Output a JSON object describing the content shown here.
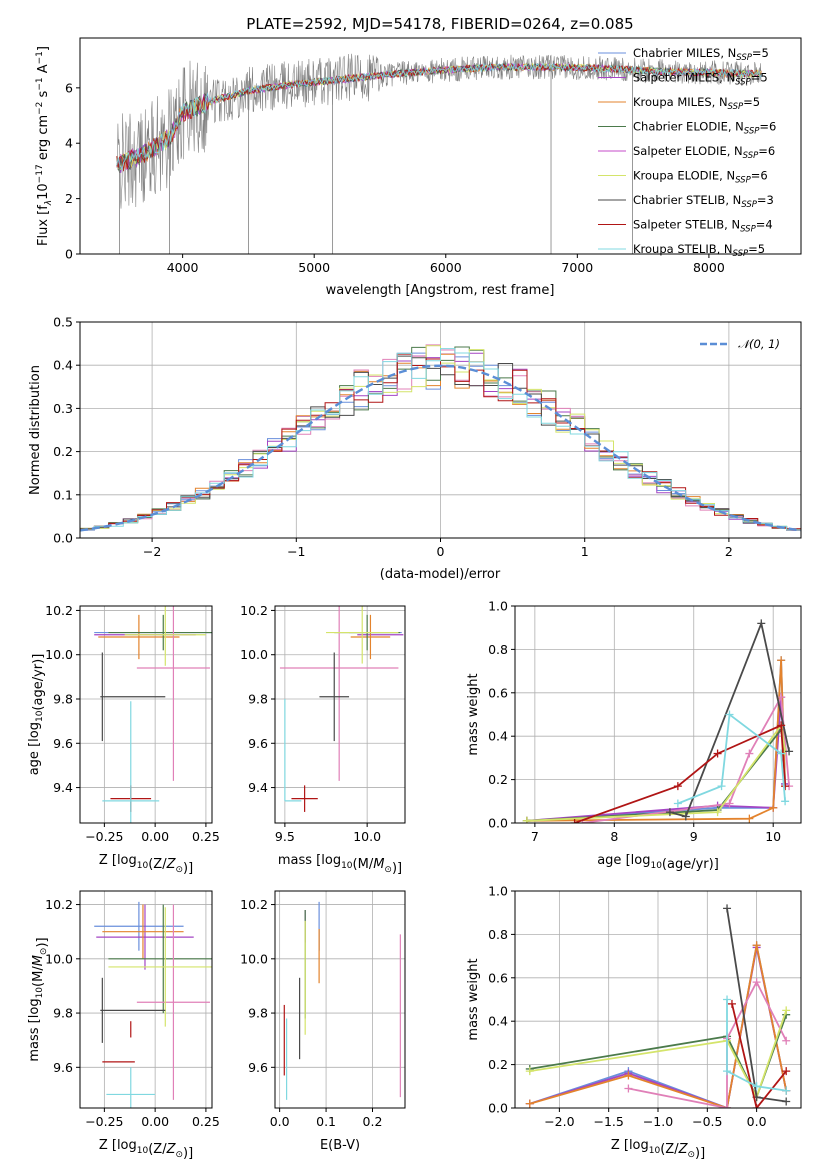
{
  "title": "PLATE=2592, MJD=54178, FIBERID=0264, z=0.085",
  "colors": {
    "Chabrier MILES": "#6a8fdc",
    "Salpeter MILES": "#a445c4",
    "Kroupa MILES": "#e3832d",
    "Chabrier ELODIE": "#4b7a4b",
    "Salpeter ELODIE": "#c54bc9",
    "Kroupa ELODIE": "#d4e46a",
    "Chabrier STELIB": "#4a4a4a",
    "Salpeter STELIB": "#b01515",
    "Kroupa STELIB": "#80d8e0",
    "N01": "#5b8ed6",
    "spectrum_gray": "#808080",
    "pink": "#e080b8"
  },
  "chart_data": [
    {
      "id": "spectrum",
      "type": "line",
      "title": "PLATE=2592, MJD=54178, FIBERID=0264, z=0.085",
      "xlabel": "wavelength [Angstrom, rest frame]",
      "ylabel_parts": [
        "Flux [f",
        "λ",
        "10",
        "−17",
        " erg cm",
        "−2",
        " s",
        "−1",
        " A",
        "−1",
        "]"
      ],
      "xlim": [
        3220,
        8700
      ],
      "ylim": [
        0,
        7.8
      ],
      "xticks": [
        4000,
        5000,
        6000,
        7000,
        8000
      ],
      "xtick_labels": [
        "4000",
        "5000",
        "6000",
        "7000",
        "8000"
      ],
      "yticks": [
        0,
        2,
        4,
        6
      ],
      "ytick_labels": [
        "0",
        "2",
        "4",
        "6"
      ],
      "legend": [
        {
          "name": "Chabrier MILES",
          "nssp": "5"
        },
        {
          "name": "Salpeter MILES",
          "nssp": "5"
        },
        {
          "name": "Kroupa MILES",
          "nssp": "5"
        },
        {
          "name": "Chabrier ELODIE",
          "nssp": "6"
        },
        {
          "name": "Salpeter ELODIE",
          "nssp": "6"
        },
        {
          "name": "Kroupa ELODIE",
          "nssp": "6"
        },
        {
          "name": "Chabrier STELIB",
          "nssp": "3"
        },
        {
          "name": "Salpeter STELIB",
          "nssp": "4"
        },
        {
          "name": "Kroupa STELIB",
          "nssp": "5"
        }
      ],
      "continuum": {
        "x": [
          3500,
          3700,
          3900,
          4000,
          4200,
          4500,
          4800,
          5000,
          5300,
          5600,
          6000,
          6400,
          6800,
          7200,
          7600,
          8000,
          8400
        ],
        "y": [
          3.2,
          3.6,
          4.2,
          5.1,
          5.5,
          5.9,
          6.1,
          6.2,
          6.35,
          6.5,
          6.65,
          6.75,
          6.75,
          6.7,
          6.6,
          6.55,
          6.5
        ]
      },
      "dips": [
        {
          "x": 3520,
          "y": 0
        },
        {
          "x": 3900,
          "y": 0
        },
        {
          "x": 4500,
          "y": 0
        },
        {
          "x": 5140,
          "y": 0
        },
        {
          "x": 6800,
          "y": 0
        },
        {
          "x": 7420,
          "y": 0
        }
      ],
      "legend_label": "N",
      "legend_sub": "SSP"
    },
    {
      "id": "residuals",
      "type": "histogram",
      "xlabel": "(data-model)/error",
      "ylabel": "Normed distribution",
      "xlim": [
        -2.5,
        2.5
      ],
      "ylim": [
        0,
        0.5
      ],
      "xticks": [
        -2,
        -1,
        0,
        1,
        2
      ],
      "xtick_labels": [
        "−2",
        "−1",
        "0",
        "1",
        "2"
      ],
      "yticks": [
        0,
        0.1,
        0.2,
        0.3,
        0.4,
        0.5
      ],
      "ytick_labels": [
        "0.0",
        "0.1",
        "0.2",
        "0.3",
        "0.4",
        "0.5"
      ],
      "legend_label": "𝒩(0, 1)",
      "bin_width": 0.1
    },
    {
      "id": "age-vs-Z",
      "type": "errorbar",
      "xlabel": "Z [log10(Z/Z⊙)]",
      "ylabel": "age [log10(age/yr)]",
      "xlim": [
        -0.37,
        0.28
      ],
      "ylim": [
        9.24,
        10.22
      ],
      "xticks": [
        -0.25,
        0,
        0.25
      ],
      "xtick_labels": [
        "−0.25",
        "0.00",
        "0.25"
      ],
      "yticks": [
        9.4,
        9.6,
        9.8,
        10.0,
        10.2
      ],
      "ytick_labels": [
        "9.4",
        "9.6",
        "9.8",
        "10.0",
        "10.2"
      ],
      "points": [
        {
          "model": "Chabrier MILES",
          "x": 0.0,
          "xerr": 0.3,
          "y": 10.1,
          "yerr": 0.0
        },
        {
          "model": "Salpeter MILES",
          "x": -0.05,
          "xerr": 0.25,
          "y": 10.09,
          "yerr": 0.0
        },
        {
          "model": "Kroupa MILES",
          "x": -0.08,
          "xerr": 0.2,
          "y": 10.08,
          "yerr": 0.1
        },
        {
          "model": "Chabrier ELODIE",
          "x": 0.04,
          "xerr": 0.27,
          "y": 10.1,
          "yerr": 0.08
        },
        {
          "model": "Salpeter ELODIE",
          "x": 0.09,
          "xerr": 0.18,
          "y": 9.94,
          "yerr": 0.51
        },
        {
          "model": "Kroupa ELODIE",
          "x": 0.05,
          "xerr": 0.2,
          "y": 10.09,
          "yerr": 0.14
        },
        {
          "model": "Chabrier STELIB",
          "x": -0.26,
          "xerr": 0.0,
          "y": 9.81,
          "yerr": 0.2
        },
        {
          "model": "Chabrier STELIB",
          "x": -0.11,
          "xerr": 0.16,
          "y": 9.81,
          "yerr": 0.0
        },
        {
          "model": "Salpeter STELIB",
          "x": -0.12,
          "xerr": 0.1,
          "y": 9.35,
          "yerr": 0.06
        },
        {
          "model": "Kroupa STELIB",
          "x": -0.12,
          "xerr": 0.14,
          "y": 9.34,
          "yerr": 0.45
        }
      ]
    },
    {
      "id": "age-vs-mass",
      "type": "errorbar",
      "xlabel": "mass [log10(M/M⊙)]",
      "xlim": [
        9.44,
        10.23
      ],
      "ylim": [
        9.24,
        10.22
      ],
      "xticks": [
        9.5,
        10.0
      ],
      "xtick_labels": [
        "9.5",
        "10.0"
      ],
      "yticks": [
        9.4,
        9.6,
        9.8,
        10.0,
        10.2
      ],
      "ytick_labels": [
        "9.4",
        "9.6",
        "9.8",
        "10.0",
        "10.2"
      ],
      "points": [
        {
          "model": "Chabrier MILES",
          "x": 10.05,
          "xerr": 0.16,
          "y": 10.1,
          "yerr": 0.0
        },
        {
          "model": "Salpeter MILES",
          "x": 10.08,
          "xerr": 0.14,
          "y": 10.09,
          "yerr": 0.0
        },
        {
          "model": "Kroupa MILES",
          "x": 10.02,
          "xerr": 0.12,
          "y": 10.08,
          "yerr": 0.1
        },
        {
          "model": "Chabrier ELODIE",
          "x": 10.0,
          "xerr": 0.2,
          "y": 10.1,
          "yerr": 0.08
        },
        {
          "model": "Salpeter ELODIE",
          "x": 9.83,
          "xerr": 0.36,
          "y": 9.94,
          "yerr": 0.51
        },
        {
          "model": "Kroupa ELODIE",
          "x": 9.97,
          "xerr": 0.22,
          "y": 10.1,
          "yerr": 0.14
        },
        {
          "model": "Chabrier STELIB",
          "x": 9.8,
          "xerr": 0.09,
          "y": 9.81,
          "yerr": 0.2
        },
        {
          "model": "Salpeter STELIB",
          "x": 9.62,
          "xerr": 0.08,
          "y": 9.35,
          "yerr": 0.06
        },
        {
          "model": "Kroupa STELIB",
          "x": 9.5,
          "xerr": 0.0,
          "y": 9.57,
          "yerr": 0.23
        },
        {
          "model": "Kroupa STELIB",
          "x": 9.55,
          "xerr": 0.05,
          "y": 9.34,
          "yerr": 0.0
        }
      ]
    },
    {
      "id": "weight-vs-age",
      "type": "line",
      "xlabel": "age [log10(age/yr)]",
      "ylabel": "mass weight",
      "xlim": [
        6.75,
        10.35
      ],
      "ylim": [
        0,
        1
      ],
      "xticks": [
        7,
        8,
        9,
        10
      ],
      "xtick_labels": [
        "7",
        "8",
        "9",
        "10"
      ],
      "yticks": [
        0,
        0.2,
        0.4,
        0.6,
        0.8,
        1.0
      ],
      "ytick_labels": [
        "0.0",
        "0.2",
        "0.4",
        "0.6",
        "0.8",
        "1.0"
      ],
      "series": [
        {
          "model": "Chabrier MILES",
          "x": [
            6.9,
            9.3,
            10.0,
            10.1,
            10.15
          ],
          "y": [
            0.01,
            0.07,
            0.07,
            0.75,
            0.18
          ]
        },
        {
          "model": "Salpeter MILES",
          "x": [
            6.9,
            9.3,
            10.0,
            10.1,
            10.15
          ],
          "y": [
            0.01,
            0.08,
            0.07,
            0.58,
            0.18
          ]
        },
        {
          "model": "Kroupa MILES",
          "x": [
            6.9,
            9.7,
            10.0,
            10.1,
            10.15
          ],
          "y": [
            0.01,
            0.02,
            0.07,
            0.75,
            0.17
          ]
        },
        {
          "model": "Chabrier ELODIE",
          "x": [
            6.9,
            9.3,
            10.1,
            10.15
          ],
          "y": [
            0.01,
            0.06,
            0.43,
            0.33
          ]
        },
        {
          "model": "Salpeter ELODIE",
          "x": [
            7.6,
            9.45,
            9.7,
            10.1,
            10.2
          ],
          "y": [
            0.0,
            0.09,
            0.32,
            0.58,
            0.17
          ]
        },
        {
          "model": "Kroupa ELODIE",
          "x": [
            6.9,
            9.3,
            10.1,
            10.15
          ],
          "y": [
            0.01,
            0.05,
            0.45,
            0.33
          ]
        },
        {
          "model": "Chabrier STELIB",
          "x": [
            8.7,
            8.9,
            9.85,
            10.2
          ],
          "y": [
            0.05,
            0.03,
            0.92,
            0.33
          ]
        },
        {
          "model": "Salpeter STELIB",
          "x": [
            7.5,
            8.8,
            9.3,
            10.1,
            10.15
          ],
          "y": [
            0.0,
            0.17,
            0.32,
            0.45,
            0.17
          ]
        },
        {
          "model": "Kroupa STELIB",
          "x": [
            8.8,
            9.35,
            9.45,
            10.1,
            10.15
          ],
          "y": [
            0.09,
            0.17,
            0.5,
            0.32,
            0.1
          ]
        }
      ]
    },
    {
      "id": "mass-vs-Z",
      "type": "errorbar",
      "xlabel": "Z [log10(Z/Z⊙)]",
      "ylabel": "mass [log10(M/M⊙)]",
      "xlim": [
        -0.37,
        0.28
      ],
      "ylim": [
        9.45,
        10.25
      ],
      "xticks": [
        -0.25,
        0,
        0.25
      ],
      "xtick_labels": [
        "−0.25",
        "0.00",
        "0.25"
      ],
      "yticks": [
        9.6,
        9.8,
        10.0,
        10.2
      ],
      "ytick_labels": [
        "9.6",
        "9.8",
        "10.0",
        "10.2"
      ],
      "points": [
        {
          "model": "Chabrier MILES",
          "x": -0.08,
          "xerr": 0.22,
          "y": 10.12,
          "yerr": 0.09
        },
        {
          "model": "Salpeter MILES",
          "x": -0.05,
          "xerr": 0.24,
          "y": 10.08,
          "yerr": 0.12
        },
        {
          "model": "Kroupa MILES",
          "x": -0.06,
          "xerr": 0.2,
          "y": 10.1,
          "yerr": 0.1
        },
        {
          "model": "Chabrier ELODIE",
          "x": 0.04,
          "xerr": 0.27,
          "y": 10.0,
          "yerr": 0.2
        },
        {
          "model": "Salpeter ELODIE",
          "x": 0.09,
          "xerr": 0.18,
          "y": 9.84,
          "yerr": 0.36
        },
        {
          "model": "Kroupa ELODIE",
          "x": 0.05,
          "xerr": 0.28,
          "y": 9.97,
          "yerr": 0.22
        },
        {
          "model": "Chabrier STELIB",
          "x": -0.26,
          "xerr": 0.0,
          "y": 9.81,
          "yerr": 0.12
        },
        {
          "model": "Chabrier STELIB",
          "x": -0.11,
          "xerr": 0.16,
          "y": 9.81,
          "yerr": 0.0
        },
        {
          "model": "Salpeter STELIB",
          "x": -0.18,
          "xerr": 0.08,
          "y": 9.62,
          "yerr": 0.0
        },
        {
          "model": "Salpeter STELIB",
          "x": -0.12,
          "xerr": 0.0,
          "y": 9.74,
          "yerr": 0.03
        },
        {
          "model": "Kroupa STELIB",
          "x": -0.12,
          "xerr": 0.12,
          "y": 9.5,
          "yerr": 0.1
        }
      ]
    },
    {
      "id": "mass-vs-ebv",
      "type": "errorbar",
      "xlabel": "E(B-V)",
      "xlim": [
        -0.01,
        0.27
      ],
      "ylim": [
        9.45,
        10.25
      ],
      "xticks": [
        0,
        0.1,
        0.2
      ],
      "xtick_labels": [
        "0.0",
        "0.1",
        "0.2"
      ],
      "yticks": [
        9.6,
        9.8,
        10.0,
        10.2
      ],
      "ytick_labels": [
        "9.6",
        "9.8",
        "10.0",
        "10.2"
      ],
      "points": [
        {
          "model": "Chabrier MILES",
          "x": 0.085,
          "xerr": 0.0,
          "y": 10.12,
          "yerr": 0.09
        },
        {
          "model": "Salpeter MILES",
          "x": 0.055,
          "xerr": 0.0,
          "y": 10.12,
          "yerr": 0.06
        },
        {
          "model": "Kroupa MILES",
          "x": 0.085,
          "xerr": 0.0,
          "y": 10.01,
          "yerr": 0.1
        },
        {
          "model": "Chabrier ELODIE",
          "x": 0.055,
          "xerr": 0.0,
          "y": 9.98,
          "yerr": 0.2
        },
        {
          "model": "Salpeter ELODIE",
          "x": 0.26,
          "xerr": 0.0,
          "y": 9.79,
          "yerr": 0.3
        },
        {
          "model": "Kroupa ELODIE",
          "x": 0.055,
          "xerr": 0.0,
          "y": 9.93,
          "yerr": 0.21
        },
        {
          "model": "Chabrier STELIB",
          "x": 0.043,
          "xerr": 0.0,
          "y": 9.78,
          "yerr": 0.15
        },
        {
          "model": "Salpeter STELIB",
          "x": 0.01,
          "xerr": 0.0,
          "y": 9.7,
          "yerr": 0.13
        },
        {
          "model": "Kroupa STELIB",
          "x": 0.015,
          "xerr": 0.0,
          "y": 9.63,
          "yerr": 0.15
        }
      ]
    },
    {
      "id": "weight-vs-Z",
      "type": "line",
      "xlabel": "Z [log10(Z/Z⊙)]",
      "ylabel": "mass weight",
      "xlim": [
        -2.45,
        0.45
      ],
      "ylim": [
        0,
        1
      ],
      "xticks": [
        -2.0,
        -1.5,
        -1.0,
        -0.5,
        0.0
      ],
      "xtick_labels": [
        "−2.0",
        "−1.5",
        "−1.0",
        "−0.5",
        "0.0"
      ],
      "yticks": [
        0,
        0.2,
        0.4,
        0.6,
        0.8,
        1.0
      ],
      "ytick_labels": [
        "0.0",
        "0.2",
        "0.4",
        "0.6",
        "0.8",
        "1.0"
      ],
      "series": [
        {
          "model": "Chabrier MILES",
          "x": [
            -2.3,
            -1.3,
            -0.3,
            0.0,
            0.3
          ],
          "y": [
            0.02,
            0.17,
            0.0,
            0.75,
            0.08
          ]
        },
        {
          "model": "Salpeter MILES",
          "x": [
            -2.3,
            -1.3,
            -0.3,
            0.0,
            0.3
          ],
          "y": [
            0.02,
            0.16,
            0.0,
            0.74,
            0.08
          ]
        },
        {
          "model": "Kroupa MILES",
          "x": [
            -2.3,
            -1.3,
            -0.3,
            0.0,
            0.3
          ],
          "y": [
            0.02,
            0.15,
            0.0,
            0.75,
            0.08
          ]
        },
        {
          "model": "Chabrier ELODIE",
          "x": [
            -2.3,
            -0.3,
            0.0,
            0.3
          ],
          "y": [
            0.18,
            0.33,
            0.05,
            0.43
          ]
        },
        {
          "model": "Salpeter ELODIE",
          "x": [
            -1.3,
            -0.3,
            -0.3,
            0.0,
            0.3
          ],
          "y": [
            0.09,
            0.0,
            0.32,
            0.58,
            0.31
          ]
        },
        {
          "model": "Kroupa ELODIE",
          "x": [
            -2.3,
            -0.3,
            0.0,
            0.3
          ],
          "y": [
            0.17,
            0.31,
            0.05,
            0.45
          ]
        },
        {
          "model": "Chabrier STELIB",
          "x": [
            -0.3,
            0.0,
            0.3
          ],
          "y": [
            0.92,
            0.05,
            0.03
          ]
        },
        {
          "model": "Salpeter STELIB",
          "x": [
            -0.25,
            0.0,
            0.3
          ],
          "y": [
            0.48,
            0.0,
            0.17
          ]
        },
        {
          "model": "Kroupa STELIB",
          "x": [
            -0.3,
            -0.3,
            0.0,
            0.3
          ],
          "y": [
            0.5,
            0.17,
            0.1,
            0.08
          ]
        }
      ]
    }
  ]
}
